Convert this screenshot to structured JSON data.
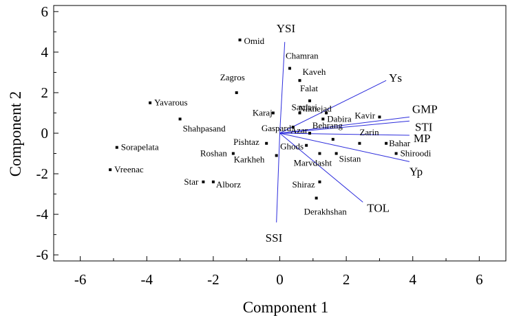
{
  "chart_data": {
    "type": "scatter",
    "subtype": "biplot",
    "xlabel": "Component 1",
    "ylabel": "Component 2",
    "xlim": [
      -6.8,
      6.8
    ],
    "ylim": [
      -6.3,
      6.3
    ],
    "xticks": [
      -6,
      -4,
      -2,
      0,
      2,
      4,
      6
    ],
    "yticks": [
      -6,
      -4,
      -2,
      0,
      2,
      4,
      6
    ],
    "grid": false,
    "legend": "none",
    "colors": {
      "points": "#000000",
      "vectors": "#2b2bdc",
      "frame": "#000000"
    },
    "points": [
      {
        "label": "Omid",
        "x": -1.2,
        "y": 4.6
      },
      {
        "label": "Chamran",
        "x": 0.3,
        "y": 3.2
      },
      {
        "label": "Kaveh",
        "x": 0.6,
        "y": 2.6
      },
      {
        "label": "Zagros",
        "x": -1.3,
        "y": 2.0
      },
      {
        "label": "Falat",
        "x": 0.9,
        "y": 1.6
      },
      {
        "label": "Yavarous",
        "x": -3.9,
        "y": 1.5
      },
      {
        "label": "Karaj",
        "x": -0.2,
        "y": 1.0
      },
      {
        "label": "Sardari",
        "x": 0.6,
        "y": 1.0
      },
      {
        "label": "Niknejad",
        "x": 1.4,
        "y": 1.0
      },
      {
        "label": "Dabira",
        "x": 1.3,
        "y": 0.7
      },
      {
        "label": "Kavir",
        "x": 3.0,
        "y": 0.8
      },
      {
        "label": "Shahpasand",
        "x": -3.0,
        "y": 0.7
      },
      {
        "label": "Gaspard",
        "x": 0.4,
        "y": 0.3
      },
      {
        "label": "Azar",
        "x": 0.9,
        "y": 0.0
      },
      {
        "label": "Behrang",
        "x": 1.6,
        "y": -0.3
      },
      {
        "label": "Zarin",
        "x": 2.4,
        "y": -0.5
      },
      {
        "label": "Bahar",
        "x": 3.2,
        "y": -0.5
      },
      {
        "label": "Pishtaz",
        "x": -0.4,
        "y": -0.5
      },
      {
        "label": "Ghods",
        "x": 0.8,
        "y": -0.6
      },
      {
        "label": "Sorapelata",
        "x": -4.9,
        "y": -0.7
      },
      {
        "label": "Shiroodi",
        "x": 3.5,
        "y": -1.0
      },
      {
        "label": "Roshan",
        "x": -1.4,
        "y": -1.0
      },
      {
        "label": "Karkheh",
        "x": -0.1,
        "y": -1.1
      },
      {
        "label": "Marvdasht",
        "x": 1.2,
        "y": -1.0
      },
      {
        "label": "Sistan",
        "x": 1.7,
        "y": -1.0
      },
      {
        "label": "Vreenac",
        "x": -5.1,
        "y": -1.8
      },
      {
        "label": "Shiraz",
        "x": 1.2,
        "y": -2.4
      },
      {
        "label": "Star",
        "x": -2.3,
        "y": -2.4
      },
      {
        "label": "Alborz",
        "x": -2.0,
        "y": -2.4
      },
      {
        "label": "Derakhshan",
        "x": 1.1,
        "y": -3.2
      }
    ],
    "vectors": [
      {
        "label": "YSI",
        "x": 0.15,
        "y": 4.5
      },
      {
        "label": "Ys",
        "x": 3.2,
        "y": 2.6
      },
      {
        "label": "GMP",
        "x": 3.9,
        "y": 0.8
      },
      {
        "label": "STI",
        "x": 3.9,
        "y": 0.6
      },
      {
        "label": "MP",
        "x": 3.9,
        "y": -0.1
      },
      {
        "label": "Yp",
        "x": 3.9,
        "y": -1.4
      },
      {
        "label": "TOL",
        "x": 2.5,
        "y": -3.4
      },
      {
        "label": "SSI",
        "x": -0.1,
        "y": -4.4
      }
    ]
  }
}
